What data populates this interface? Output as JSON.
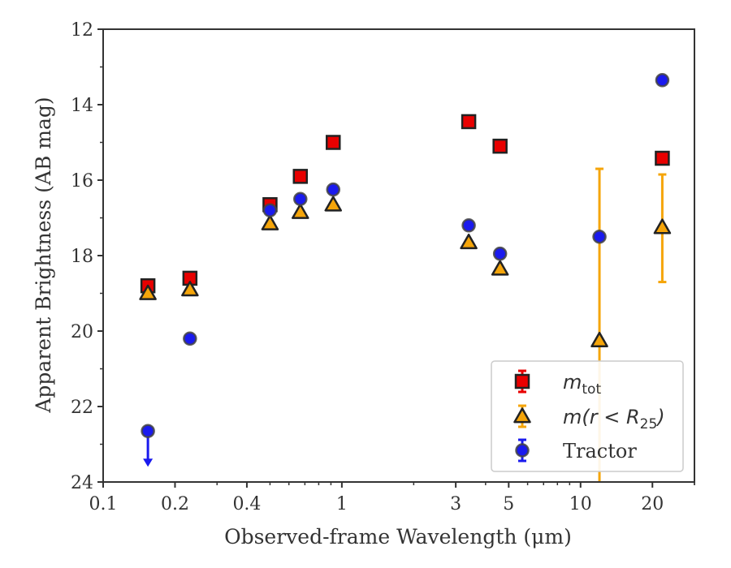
{
  "chart_data": {
    "type": "scatter",
    "title": "",
    "xlabel": "Observed-frame Wavelength (μm)",
    "ylabel": "Apparent Brightness (AB mag)",
    "xscale": "log",
    "xlim": [
      0.1,
      30
    ],
    "ylim": [
      24,
      12
    ],
    "y_inverted": true,
    "x_ticks": [
      {
        "value": 0.1,
        "label": "0.1"
      },
      {
        "value": 0.2,
        "label": "0.2"
      },
      {
        "value": 0.4,
        "label": "0.4"
      },
      {
        "value": 1,
        "label": "1"
      },
      {
        "value": 3,
        "label": "3"
      },
      {
        "value": 5,
        "label": "5"
      },
      {
        "value": 10,
        "label": "10"
      },
      {
        "value": 20,
        "label": "20"
      }
    ],
    "y_ticks": [
      {
        "value": 12,
        "label": "12"
      },
      {
        "value": 14,
        "label": "14"
      },
      {
        "value": 16,
        "label": "16"
      },
      {
        "value": 18,
        "label": "18"
      },
      {
        "value": 20,
        "label": "20"
      },
      {
        "value": 22,
        "label": "22"
      },
      {
        "value": 24,
        "label": "24"
      }
    ],
    "legend_position": "lower-right",
    "grid": false,
    "series": [
      {
        "name": "m_tot",
        "legend_label": {
          "base": "m",
          "sub": "tot"
        },
        "marker": "square",
        "color": "#e80000",
        "edge_color": "#222222",
        "points": [
          {
            "x": 0.154,
            "y": 18.8
          },
          {
            "x": 0.231,
            "y": 18.6
          },
          {
            "x": 0.5,
            "y": 16.65
          },
          {
            "x": 0.67,
            "y": 15.9
          },
          {
            "x": 0.92,
            "y": 15.0
          },
          {
            "x": 3.4,
            "y": 14.45
          },
          {
            "x": 4.6,
            "y": 15.1
          },
          {
            "x": 22,
            "y": 15.42
          }
        ]
      },
      {
        "name": "m(r < R_25)",
        "legend_label": {
          "base": "m(r < R",
          "sub": "25",
          "end": ")"
        },
        "marker": "triangle",
        "color": "#f5a50a",
        "edge_color": "#222222",
        "points": [
          {
            "x": 0.154,
            "y": 19.0
          },
          {
            "x": 0.231,
            "y": 18.9
          },
          {
            "x": 0.5,
            "y": 17.15
          },
          {
            "x": 0.67,
            "y": 16.85
          },
          {
            "x": 0.92,
            "y": 16.65
          },
          {
            "x": 3.4,
            "y": 17.65
          },
          {
            "x": 4.6,
            "y": 18.35
          },
          {
            "x": 12,
            "y": 20.25,
            "yerr": [
              15.7,
              24.2
            ]
          },
          {
            "x": 22,
            "y": 17.25,
            "yerr": [
              15.85,
              18.7
            ]
          }
        ]
      },
      {
        "name": "Tractor",
        "marker": "circle",
        "color": "#1a1aee",
        "edge_color": "#444444",
        "points": [
          {
            "x": 0.154,
            "y": 22.65,
            "upper_limit": true
          },
          {
            "x": 0.231,
            "y": 20.2
          },
          {
            "x": 0.5,
            "y": 16.8
          },
          {
            "x": 0.67,
            "y": 16.5
          },
          {
            "x": 0.92,
            "y": 16.25
          },
          {
            "x": 3.4,
            "y": 17.2
          },
          {
            "x": 4.6,
            "y": 17.95
          },
          {
            "x": 12,
            "y": 17.5
          },
          {
            "x": 22,
            "y": 13.35
          }
        ]
      }
    ],
    "legend": [
      {
        "label": "m",
        "sub": "tot",
        "end": "",
        "italic": true
      },
      {
        "label": "m(r < R",
        "sub": "25",
        "end": ")",
        "italic": true
      },
      {
        "label": "Tractor",
        "sub": "",
        "end": "",
        "italic": false
      }
    ]
  }
}
